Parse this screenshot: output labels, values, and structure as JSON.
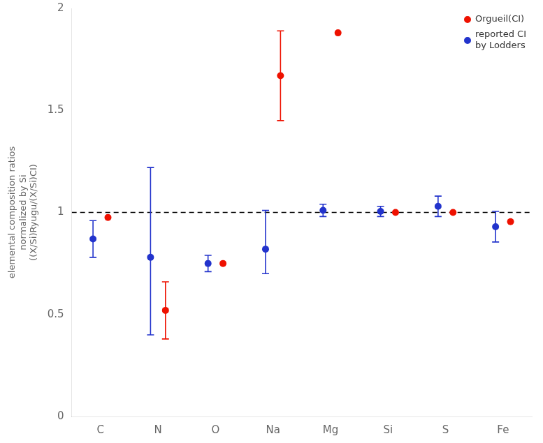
{
  "chart_data": {
    "type": "scatter",
    "categories": [
      "C",
      "N",
      "O",
      "Na",
      "Mg",
      "Si",
      "S",
      "Fe"
    ],
    "y_label": "elemental composition ratios\nnormalized by Si\n((X/Si)Ryugu/(X/Si)CI)",
    "series": [
      {
        "name": "Orgueil(CI)",
        "color": "#ee1100",
        "marker": "circle",
        "values": [
          0.975,
          0.52,
          0.75,
          1.67,
          1.88,
          1.0,
          1.0,
          0.955
        ],
        "error_upper": [
          0.0,
          0.14,
          0.0,
          0.22,
          0.0,
          0.0,
          0.0,
          0.0
        ],
        "error_lower": [
          0.0,
          0.14,
          0.0,
          0.22,
          0.0,
          0.0,
          0.0,
          0.0
        ]
      },
      {
        "name": "reported CI\nby Lodders",
        "color": "#2233cc",
        "marker": "circle",
        "values": [
          0.87,
          0.78,
          0.75,
          0.82,
          1.01,
          1.005,
          1.03,
          0.93
        ],
        "error_upper": [
          0.09,
          0.44,
          0.04,
          0.19,
          0.03,
          0.025,
          0.05,
          0.075
        ],
        "error_lower": [
          0.09,
          0.38,
          0.04,
          0.12,
          0.03,
          0.025,
          0.05,
          0.075
        ]
      }
    ],
    "ylim": [
      0,
      2
    ],
    "yticks": [
      0,
      0.5,
      1,
      1.5,
      2
    ],
    "grid": false,
    "legend": "upper right",
    "hlines": [
      {
        "y": 1,
        "line_style": "dashed",
        "color": "#000000"
      }
    ]
  }
}
